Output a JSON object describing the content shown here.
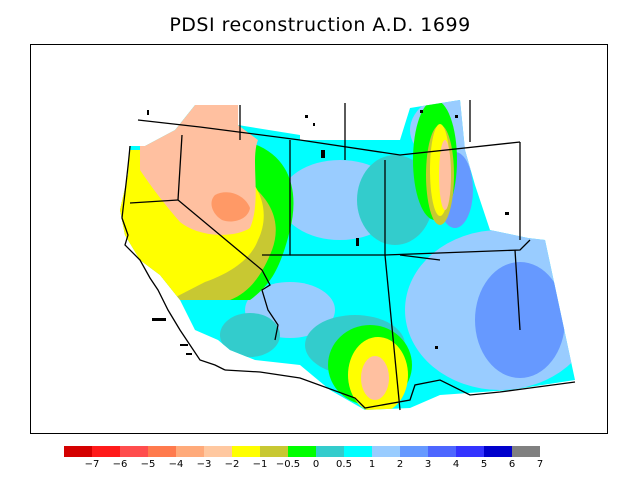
{
  "title": "PDSI reconstruction A.D. 1699",
  "legend": {
    "colors": [
      "#d40000",
      "#ff1a1a",
      "#ff4d4d",
      "#ff7a4d",
      "#ffaa7a",
      "#ffc8a0",
      "#ffff00",
      "#c8c832",
      "#00ff00",
      "#33cccc",
      "#00ffff",
      "#99ccff",
      "#6699ff",
      "#4d66ff",
      "#3333ff",
      "#0000cc",
      "#808080"
    ],
    "labels": [
      "−7",
      "−6",
      "−5",
      "−4",
      "−3",
      "−2",
      "−1",
      "−0.5",
      "0",
      "0.5",
      "1",
      "2",
      "3",
      "4",
      "5",
      "6",
      "7"
    ]
  },
  "palette": {
    "salmon": "#ffc0a0",
    "orange": "#ff9966",
    "yellow": "#ffff00",
    "olive": "#c8c832",
    "green": "#00ff00",
    "teal": "#33cccc",
    "cyan": "#00ffff",
    "light_blue": "#99ccff",
    "blue": "#6699ff"
  }
}
